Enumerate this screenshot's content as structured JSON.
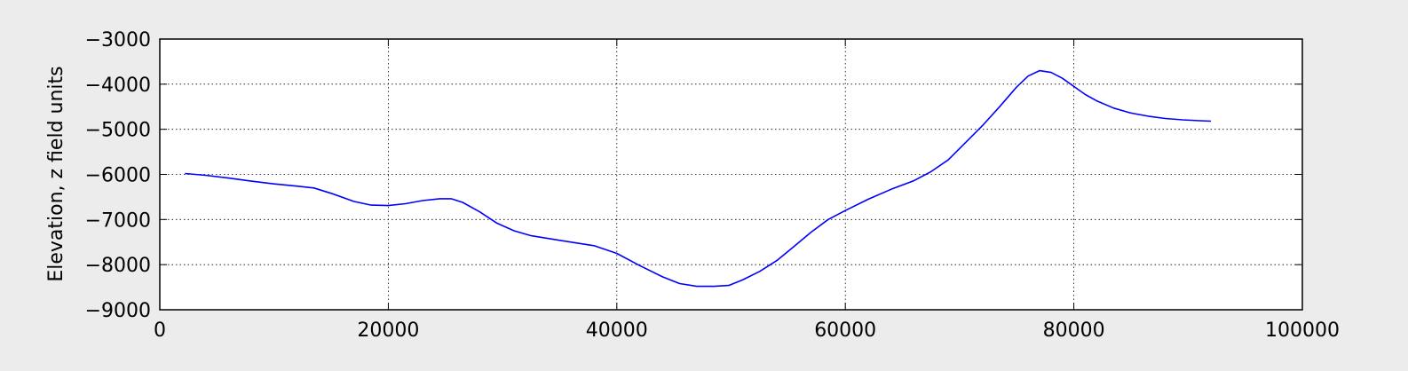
{
  "chart_data": {
    "type": "line",
    "title": "",
    "xlabel": "",
    "ylabel": "Elevation, z field units",
    "xlim": [
      0,
      100000
    ],
    "ylim": [
      -9000,
      -3000
    ],
    "xticks": [
      0,
      20000,
      40000,
      60000,
      80000,
      100000
    ],
    "yticks": [
      -3000,
      -4000,
      -5000,
      -6000,
      -7000,
      -8000,
      -9000
    ],
    "xtick_labels": [
      "0",
      "20000",
      "40000",
      "60000",
      "80000",
      "100000"
    ],
    "ytick_labels": [
      "−3000",
      "−4000",
      "−5000",
      "−6000",
      "−7000",
      "−8000",
      "−9000"
    ],
    "grid": true,
    "grid_style": "dotted",
    "line_color": "#0000ff",
    "series": [
      {
        "x": [
          2200,
          4000,
          6000,
          8000,
          10000,
          12000,
          13500,
          15000,
          17000,
          18500,
          20000,
          21500,
          23000,
          24500,
          25500,
          26500,
          28000,
          29500,
          31000,
          32500,
          34000,
          36000,
          38000,
          40000,
          42000,
          44000,
          45500,
          47000,
          48500,
          49800,
          51000,
          52500,
          54000,
          55500,
          57000,
          58500,
          60000,
          62000,
          64000,
          66000,
          67500,
          69000,
          70500,
          72000,
          73500,
          75000,
          76000,
          77000,
          78000,
          79000,
          80000,
          81000,
          82000,
          83500,
          85000,
          86500,
          88000,
          89500,
          91000,
          92000
        ],
        "y": [
          -5980,
          -6020,
          -6080,
          -6150,
          -6210,
          -6260,
          -6300,
          -6420,
          -6600,
          -6680,
          -6690,
          -6650,
          -6580,
          -6540,
          -6540,
          -6620,
          -6830,
          -7080,
          -7250,
          -7360,
          -7420,
          -7500,
          -7580,
          -7750,
          -8020,
          -8270,
          -8420,
          -8480,
          -8480,
          -8460,
          -8340,
          -8150,
          -7910,
          -7600,
          -7280,
          -7000,
          -6800,
          -6550,
          -6330,
          -6140,
          -5940,
          -5680,
          -5300,
          -4920,
          -4500,
          -4060,
          -3820,
          -3700,
          -3740,
          -3870,
          -4050,
          -4230,
          -4370,
          -4530,
          -4640,
          -4710,
          -4760,
          -4790,
          -4810,
          -4820
        ]
      }
    ]
  }
}
